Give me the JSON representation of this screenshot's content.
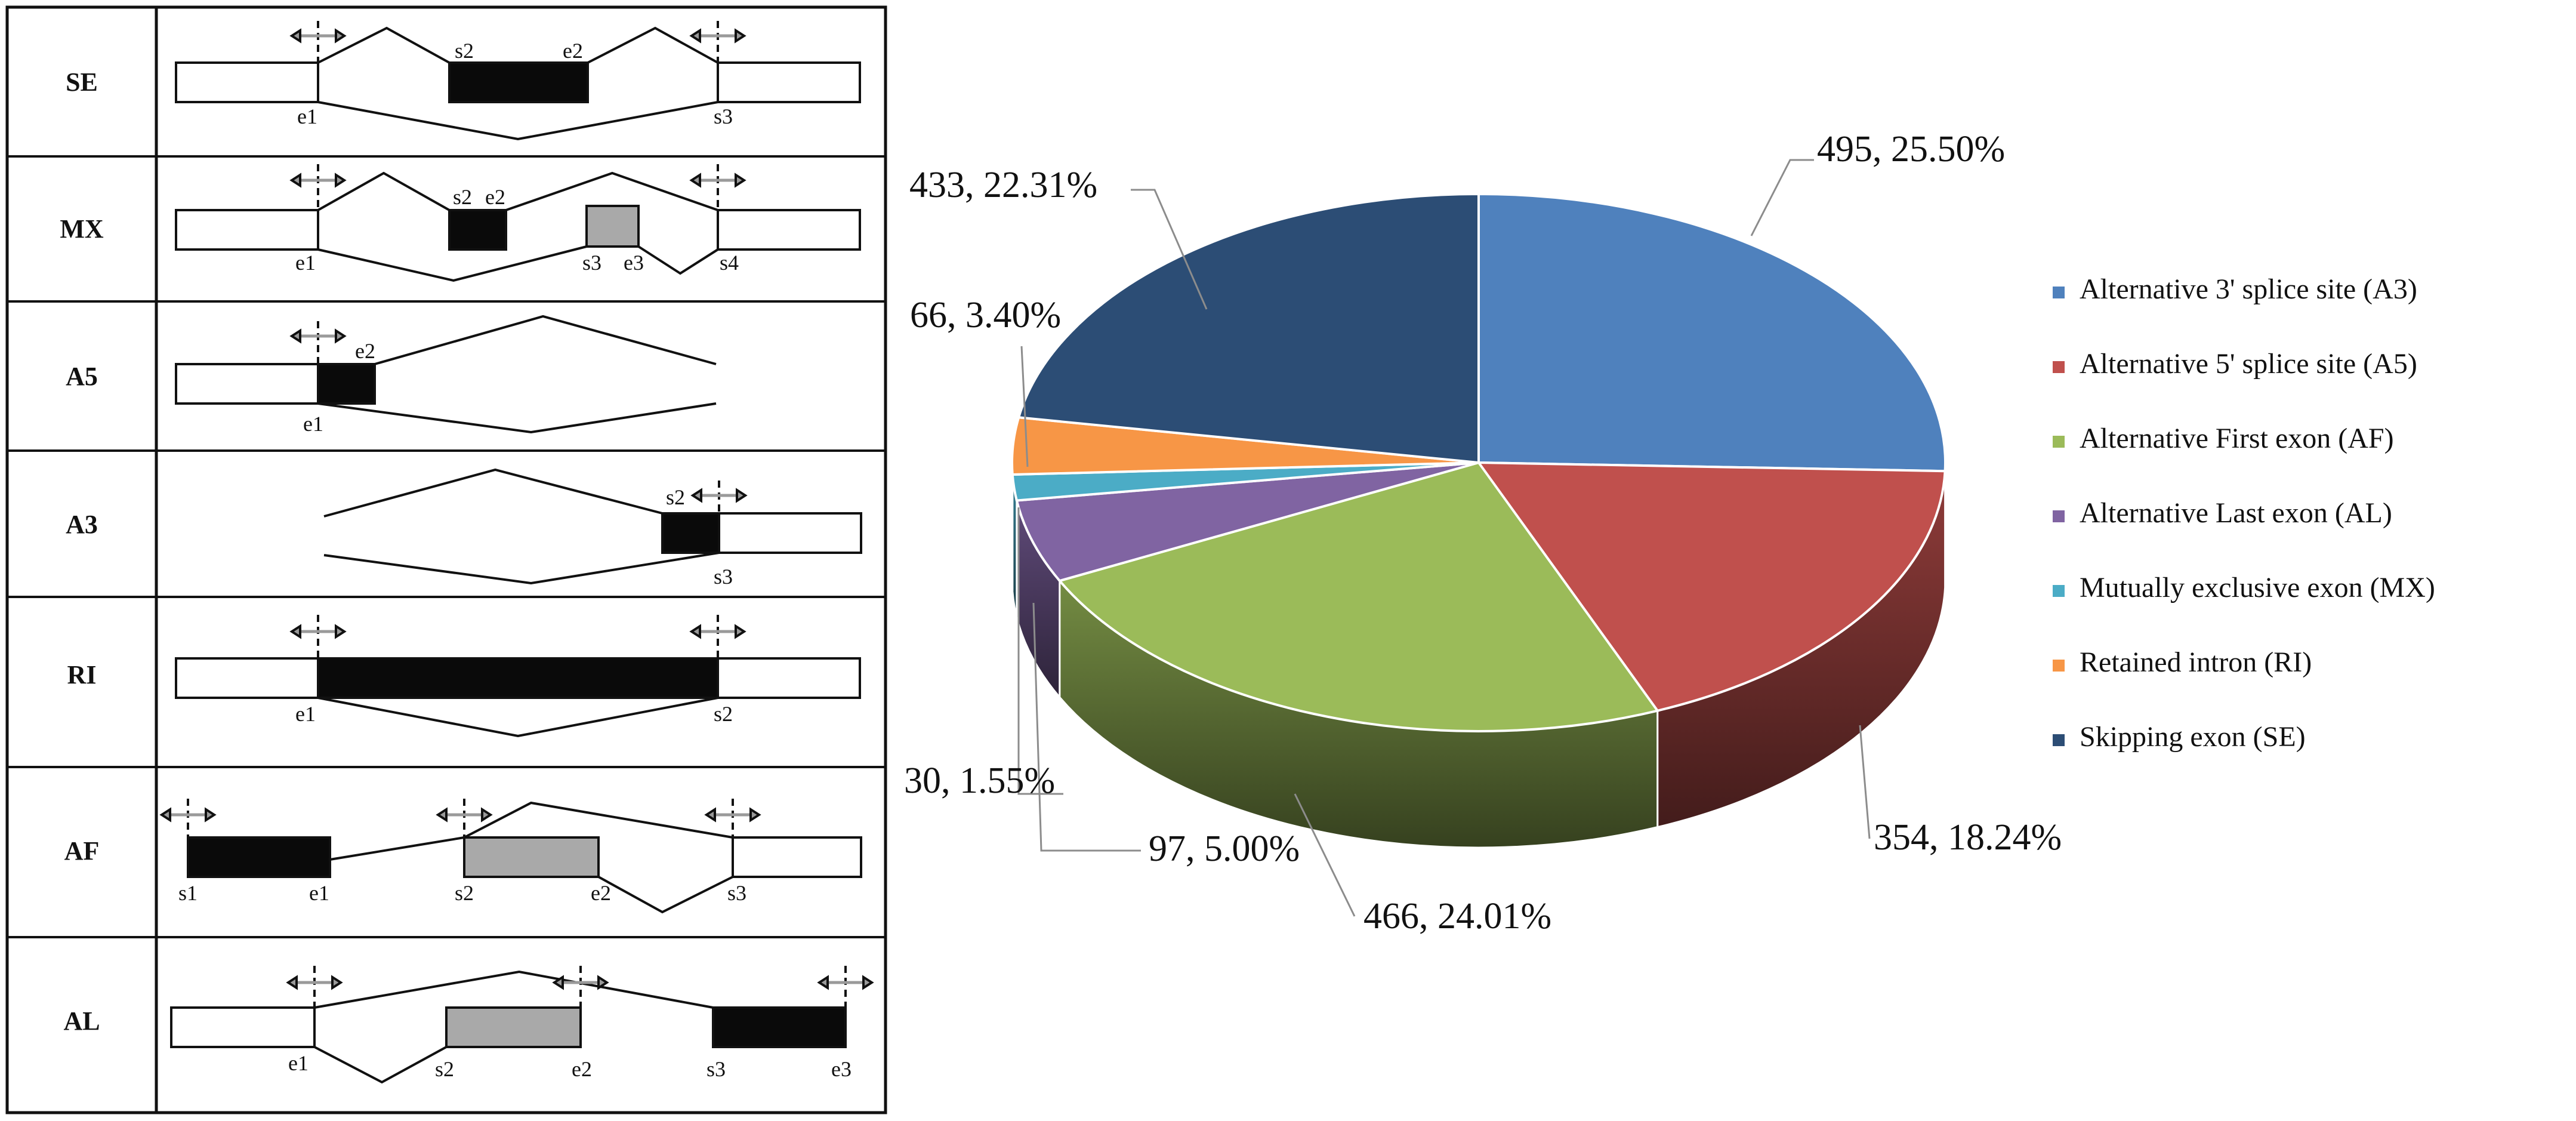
{
  "events_table": {
    "rows": [
      {
        "event": "SE",
        "labels": [
          "s2",
          "e2",
          "e1",
          "s3"
        ]
      },
      {
        "event": "MX",
        "labels": [
          "s2",
          "e2",
          "e1",
          "s3",
          "e3",
          "s4"
        ]
      },
      {
        "event": "A5",
        "labels": [
          "e2",
          "e1"
        ]
      },
      {
        "event": "A3",
        "labels": [
          "s2",
          "s3"
        ]
      },
      {
        "event": "RI",
        "labels": [
          "e1",
          "s2"
        ]
      },
      {
        "event": "AF",
        "labels": [
          "s1",
          "e1",
          "s2",
          "e2",
          "s3"
        ]
      },
      {
        "event": "AL",
        "labels": [
          "e1",
          "s2",
          "e2",
          "s3",
          "e3"
        ]
      }
    ],
    "colors": {
      "constitutive": "#ffffff",
      "alt_black": "#0a0a0a",
      "alt_gray": "#a9a9a9",
      "arrow": "#9a9a9a"
    }
  },
  "chart_data": {
    "type": "pie",
    "style": "3d",
    "title": "",
    "total_order": "clockwise from 12 o'clock",
    "series": [
      {
        "name": "Alternative 3' splice site (A3)",
        "value": 495,
        "percent": "25.50%",
        "label": "495, 25.50%",
        "color": "#4f81bd"
      },
      {
        "name": "Alternative 5' splice site (A5)",
        "value": 354,
        "percent": "18.24%",
        "label": "354, 18.24%",
        "color": "#c0504d"
      },
      {
        "name": "Alternative First exon (AF)",
        "value": 466,
        "percent": "24.01%",
        "label": "466, 24.01%",
        "color": "#9bbb59"
      },
      {
        "name": "Alternative Last exon (AL)",
        "value": 97,
        "percent": "5.00%",
        "label": "97, 5.00%",
        "color": "#8064a2"
      },
      {
        "name": "Mutually exclusive exon (MX)",
        "value": 30,
        "percent": "1.55%",
        "label": "30, 1.55%",
        "color": "#4bacc6"
      },
      {
        "name": "Retained intron (RI)",
        "value": 66,
        "percent": "3.40%",
        "label": "66, 3.40%",
        "color": "#f79646"
      },
      {
        "name": "Skipping exon (SE)",
        "value": 433,
        "percent": "22.31%",
        "label": "433, 22.31%",
        "color": "#2c4d75"
      }
    ],
    "legend_position": "right"
  }
}
